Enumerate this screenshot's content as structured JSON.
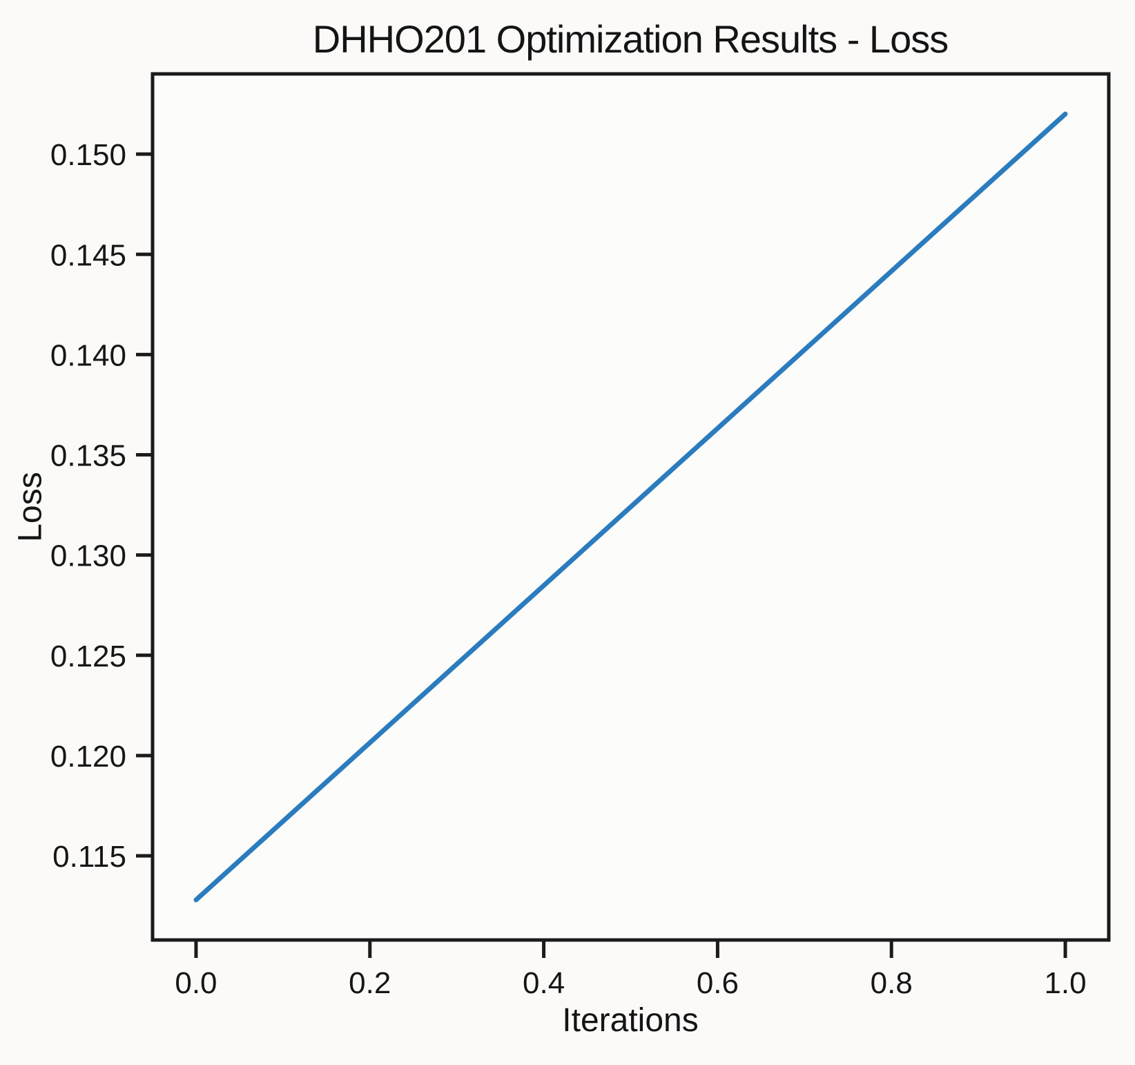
{
  "chart_data": {
    "type": "line",
    "title": "DHHO201 Optimization Results - Loss",
    "xlabel": "Iterations",
    "ylabel": "Loss",
    "series": [
      {
        "name": "Loss",
        "x": [
          0.0,
          1.0
        ],
        "y": [
          0.1128,
          0.152
        ]
      }
    ],
    "xlim": [
      -0.05,
      1.05
    ],
    "ylim": [
      0.1108,
      0.154
    ],
    "xticks": [
      0.0,
      0.2,
      0.4,
      0.6,
      0.8,
      1.0
    ],
    "xtick_labels": [
      "0.0",
      "0.2",
      "0.4",
      "0.6",
      "0.8",
      "1.0"
    ],
    "yticks": [
      0.115,
      0.12,
      0.125,
      0.13,
      0.135,
      0.14,
      0.145,
      0.15
    ],
    "ytick_labels": [
      "0.115",
      "0.120",
      "0.125",
      "0.130",
      "0.135",
      "0.140",
      "0.145",
      "0.150"
    ],
    "grid": false,
    "legend_position": "none",
    "line_color": "#2b7cbe",
    "axis_color": "#1b1b1b",
    "text_color": "#161616",
    "background_color": "#fbfaf8",
    "plot_background_color": "#fcfcfa"
  }
}
